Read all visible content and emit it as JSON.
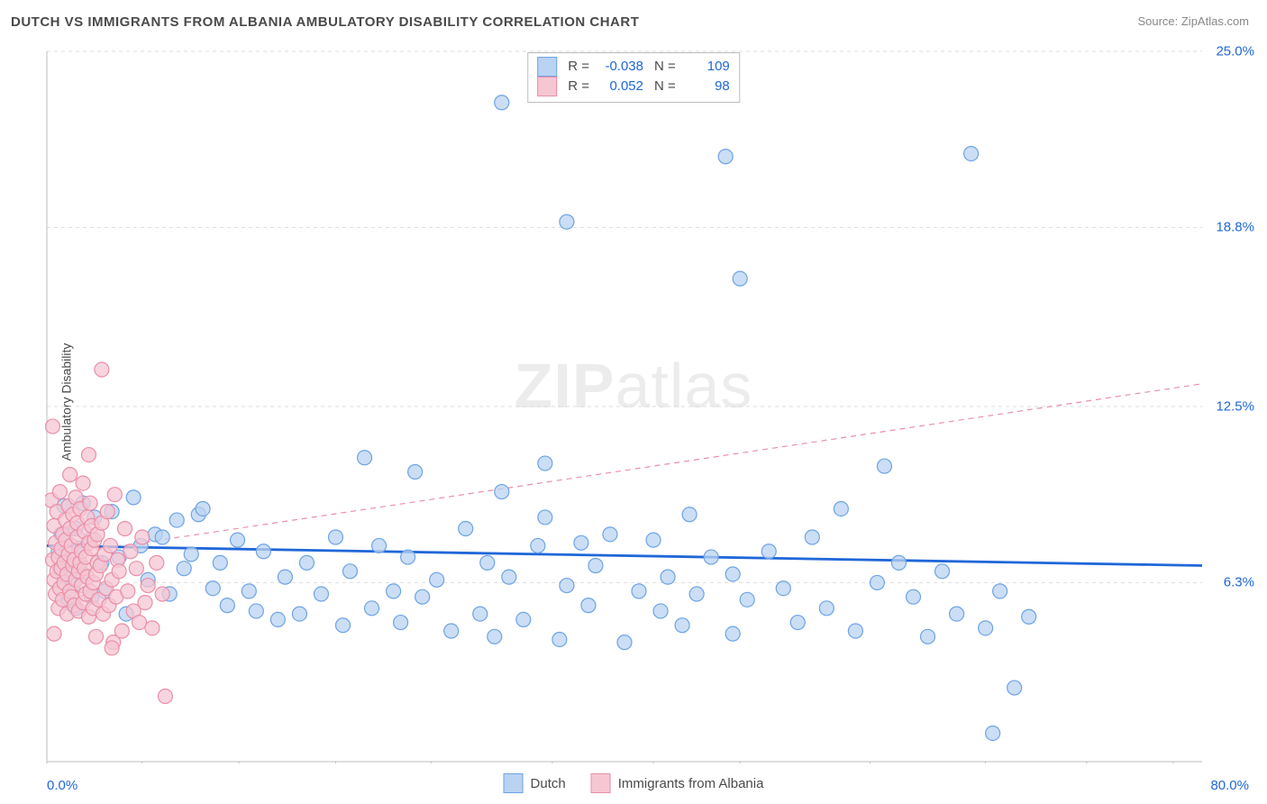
{
  "title": "DUTCH VS IMMIGRANTS FROM ALBANIA AMBULATORY DISABILITY CORRELATION CHART",
  "source": "Source: ZipAtlas.com",
  "y_axis_label": "Ambulatory Disability",
  "watermark_bold": "ZIP",
  "watermark_light": "atlas",
  "chart": {
    "type": "scatter",
    "background_color": "#ffffff",
    "grid_color": "#dddddd",
    "axis_color": "#bcbcbc",
    "tick_color": "#bcbcbc",
    "label_color": "#2067d8",
    "xlim": [
      0,
      80
    ],
    "ylim": [
      0,
      25
    ],
    "x_ticks": [
      0,
      6.6,
      13.3,
      20,
      26.6,
      35,
      42,
      48,
      57,
      65,
      72,
      78
    ],
    "y_ticks": [
      6.3,
      12.5,
      18.8,
      25.0
    ],
    "y_tick_labels": [
      "6.3%",
      "12.5%",
      "18.8%",
      "25.0%"
    ],
    "x_min_label": "0.0%",
    "x_max_label": "80.0%",
    "marker_radius": 8,
    "marker_stroke_width": 1.2,
    "trend_line_width_solid": 2.8,
    "trend_line_width_dash": 1.2,
    "trend_dash": "6 5",
    "series": [
      {
        "name": "Dutch",
        "fill": "#b9d3f2",
        "stroke": "#6ea3e5",
        "swatch_fill": "#b9d3f2",
        "swatch_stroke": "#6ea3e5",
        "trend": {
          "style": "solid",
          "color": "#2067d8",
          "y_at_x0": 7.6,
          "y_at_x80": 6.9
        },
        "stats": {
          "R": "-0.038",
          "N": "109"
        },
        "points": [
          [
            0.8,
            7.4
          ],
          [
            0.9,
            6.8
          ],
          [
            1.0,
            8.0
          ],
          [
            1.2,
            6.5
          ],
          [
            1.2,
            9.0
          ],
          [
            1.5,
            7.0
          ],
          [
            1.5,
            5.6
          ],
          [
            1.8,
            6.2
          ],
          [
            2.0,
            8.2
          ],
          [
            2.0,
            5.4
          ],
          [
            2.2,
            7.5
          ],
          [
            2.5,
            6.6
          ],
          [
            2.5,
            9.1
          ],
          [
            3.0,
            7.8
          ],
          [
            3.1,
            5.8
          ],
          [
            3.3,
            8.6
          ],
          [
            3.8,
            7.0
          ],
          [
            4.0,
            6.0
          ],
          [
            4.5,
            8.8
          ],
          [
            5.0,
            7.2
          ],
          [
            5.5,
            5.2
          ],
          [
            6.0,
            9.3
          ],
          [
            6.5,
            7.6
          ],
          [
            7.0,
            6.4
          ],
          [
            7.5,
            8.0
          ],
          [
            8.0,
            7.9
          ],
          [
            8.5,
            5.9
          ],
          [
            9.0,
            8.5
          ],
          [
            9.5,
            6.8
          ],
          [
            10.0,
            7.3
          ],
          [
            10.5,
            8.7
          ],
          [
            10.8,
            8.9
          ],
          [
            11.5,
            6.1
          ],
          [
            12.0,
            7.0
          ],
          [
            12.5,
            5.5
          ],
          [
            13.2,
            7.8
          ],
          [
            14.0,
            6.0
          ],
          [
            14.5,
            5.3
          ],
          [
            15.0,
            7.4
          ],
          [
            16.0,
            5.0
          ],
          [
            16.5,
            6.5
          ],
          [
            17.5,
            5.2
          ],
          [
            18.0,
            7.0
          ],
          [
            19.0,
            5.9
          ],
          [
            20.0,
            7.9
          ],
          [
            20.5,
            4.8
          ],
          [
            21.0,
            6.7
          ],
          [
            22.0,
            10.7
          ],
          [
            22.5,
            5.4
          ],
          [
            23.0,
            7.6
          ],
          [
            24.0,
            6.0
          ],
          [
            24.5,
            4.9
          ],
          [
            25.0,
            7.2
          ],
          [
            25.5,
            10.2
          ],
          [
            26.0,
            5.8
          ],
          [
            27.0,
            6.4
          ],
          [
            28.0,
            4.6
          ],
          [
            29.0,
            8.2
          ],
          [
            30.0,
            5.2
          ],
          [
            30.5,
            7.0
          ],
          [
            31.0,
            4.4
          ],
          [
            31.5,
            9.5
          ],
          [
            31.5,
            23.2
          ],
          [
            32.0,
            6.5
          ],
          [
            33.0,
            5.0
          ],
          [
            34.0,
            7.6
          ],
          [
            34.5,
            10.5
          ],
          [
            34.5,
            8.6
          ],
          [
            35.5,
            4.3
          ],
          [
            36.0,
            6.2
          ],
          [
            36.0,
            19.0
          ],
          [
            37.0,
            7.7
          ],
          [
            37.5,
            5.5
          ],
          [
            38.0,
            6.9
          ],
          [
            39.0,
            8.0
          ],
          [
            40.0,
            4.2
          ],
          [
            41.0,
            6.0
          ],
          [
            42.0,
            7.8
          ],
          [
            42.5,
            5.3
          ],
          [
            43.0,
            6.5
          ],
          [
            44.0,
            4.8
          ],
          [
            44.5,
            8.7
          ],
          [
            45.0,
            5.9
          ],
          [
            46.0,
            7.2
          ],
          [
            47.0,
            21.3
          ],
          [
            47.5,
            4.5
          ],
          [
            47.5,
            6.6
          ],
          [
            48.0,
            17.0
          ],
          [
            48.5,
            5.7
          ],
          [
            50.0,
            7.4
          ],
          [
            51.0,
            6.1
          ],
          [
            52.0,
            4.9
          ],
          [
            53.0,
            7.9
          ],
          [
            54.0,
            5.4
          ],
          [
            55.0,
            8.9
          ],
          [
            56.0,
            4.6
          ],
          [
            57.5,
            6.3
          ],
          [
            58.0,
            10.4
          ],
          [
            59.0,
            7.0
          ],
          [
            60.0,
            5.8
          ],
          [
            61.0,
            4.4
          ],
          [
            62.0,
            6.7
          ],
          [
            63.0,
            5.2
          ],
          [
            64.0,
            21.4
          ],
          [
            65.0,
            4.7
          ],
          [
            65.5,
            1.0
          ],
          [
            66.0,
            6.0
          ],
          [
            67.0,
            2.6
          ],
          [
            68.0,
            5.1
          ]
        ]
      },
      {
        "name": "Immigrants from Albania",
        "fill": "#f6c6d3",
        "stroke": "#e98fa8",
        "swatch_fill": "#f6c6d3",
        "swatch_stroke": "#e98fa8",
        "trend": {
          "style": "dashed",
          "color": "#e98fa8",
          "y_at_x0": 7.2,
          "y_at_x80": 13.3
        },
        "stats": {
          "R": "0.052",
          "N": "98"
        },
        "points": [
          [
            0.3,
            9.2
          ],
          [
            0.4,
            7.1
          ],
          [
            0.4,
            11.8
          ],
          [
            0.5,
            6.4
          ],
          [
            0.5,
            8.3
          ],
          [
            0.6,
            7.7
          ],
          [
            0.6,
            5.9
          ],
          [
            0.7,
            6.7
          ],
          [
            0.7,
            8.8
          ],
          [
            0.8,
            7.2
          ],
          [
            0.8,
            5.4
          ],
          [
            0.9,
            6.1
          ],
          [
            0.9,
            9.5
          ],
          [
            1.0,
            7.5
          ],
          [
            1.0,
            6.8
          ],
          [
            1.1,
            8.0
          ],
          [
            1.1,
            5.7
          ],
          [
            1.2,
            7.0
          ],
          [
            1.2,
            6.3
          ],
          [
            1.3,
            8.5
          ],
          [
            1.3,
            7.8
          ],
          [
            1.4,
            6.6
          ],
          [
            1.4,
            5.2
          ],
          [
            1.5,
            9.0
          ],
          [
            1.5,
            7.3
          ],
          [
            1.6,
            6.0
          ],
          [
            1.6,
            8.2
          ],
          [
            1.7,
            7.6
          ],
          [
            1.7,
            5.8
          ],
          [
            1.8,
            6.9
          ],
          [
            1.8,
            8.7
          ],
          [
            1.9,
            7.1
          ],
          [
            1.9,
            5.5
          ],
          [
            2.0,
            9.3
          ],
          [
            2.0,
            6.4
          ],
          [
            2.1,
            7.9
          ],
          [
            2.1,
            8.4
          ],
          [
            2.2,
            6.7
          ],
          [
            2.2,
            5.3
          ],
          [
            2.3,
            7.0
          ],
          [
            2.3,
            8.9
          ],
          [
            2.4,
            6.2
          ],
          [
            2.4,
            7.4
          ],
          [
            2.5,
            5.6
          ],
          [
            2.5,
            9.8
          ],
          [
            2.6,
            6.8
          ],
          [
            2.6,
            8.1
          ],
          [
            2.7,
            7.2
          ],
          [
            2.7,
            5.9
          ],
          [
            2.8,
            6.5
          ],
          [
            2.8,
            8.6
          ],
          [
            2.9,
            7.7
          ],
          [
            2.9,
            5.1
          ],
          [
            3.0,
            6.0
          ],
          [
            3.0,
            9.1
          ],
          [
            3.1,
            7.5
          ],
          [
            3.1,
            8.3
          ],
          [
            3.2,
            6.3
          ],
          [
            3.2,
            5.4
          ],
          [
            3.3,
            7.8
          ],
          [
            3.4,
            6.6
          ],
          [
            3.4,
            4.4
          ],
          [
            3.5,
            8.0
          ],
          [
            3.5,
            7.0
          ],
          [
            3.6,
            5.7
          ],
          [
            3.7,
            6.9
          ],
          [
            3.8,
            8.4
          ],
          [
            3.9,
            5.2
          ],
          [
            4.0,
            7.3
          ],
          [
            4.1,
            6.1
          ],
          [
            4.2,
            8.8
          ],
          [
            4.3,
            5.5
          ],
          [
            4.4,
            7.6
          ],
          [
            4.5,
            6.4
          ],
          [
            4.6,
            4.2
          ],
          [
            4.7,
            9.4
          ],
          [
            4.8,
            5.8
          ],
          [
            4.9,
            7.1
          ],
          [
            5.0,
            6.7
          ],
          [
            5.2,
            4.6
          ],
          [
            5.4,
            8.2
          ],
          [
            5.6,
            6.0
          ],
          [
            5.8,
            7.4
          ],
          [
            6.0,
            5.3
          ],
          [
            6.2,
            6.8
          ],
          [
            6.4,
            4.9
          ],
          [
            6.6,
            7.9
          ],
          [
            6.8,
            5.6
          ],
          [
            7.0,
            6.2
          ],
          [
            7.3,
            4.7
          ],
          [
            7.6,
            7.0
          ],
          [
            8.0,
            5.9
          ],
          [
            8.2,
            2.3
          ],
          [
            3.8,
            13.8
          ],
          [
            2.9,
            10.8
          ],
          [
            1.6,
            10.1
          ],
          [
            4.5,
            4.0
          ],
          [
            0.5,
            4.5
          ]
        ]
      }
    ]
  },
  "stats_labels": {
    "R": "R =",
    "N": "N ="
  },
  "legend_bottom": [
    "Dutch",
    "Immigrants from Albania"
  ]
}
